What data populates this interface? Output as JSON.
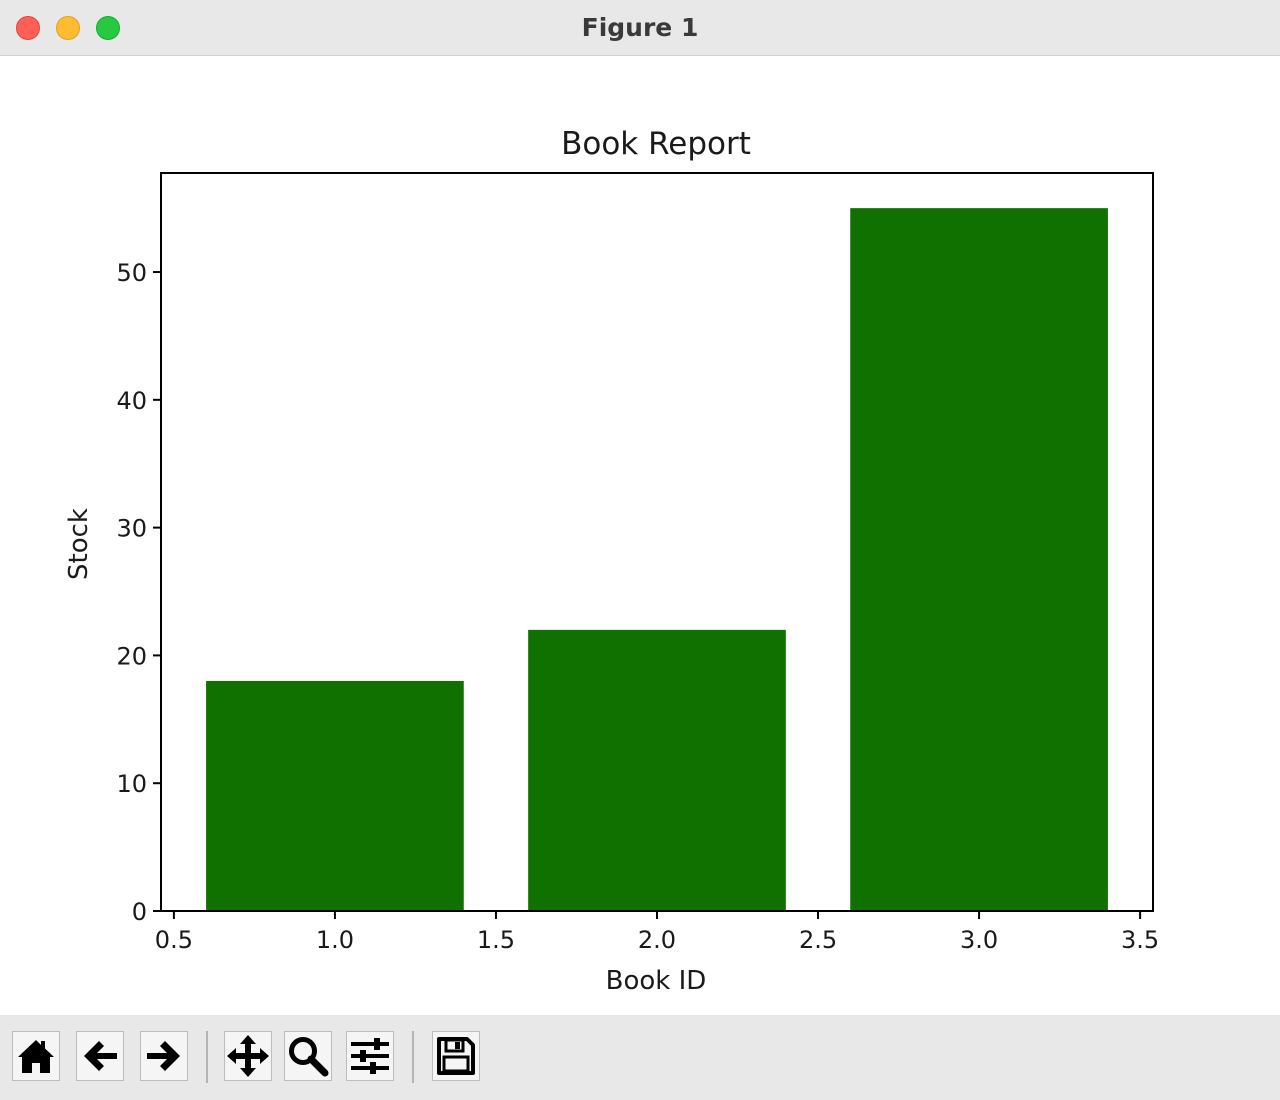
{
  "window": {
    "title": "Figure 1"
  },
  "toolbar": {
    "buttons": [
      {
        "icon": "home-icon",
        "action": "home"
      },
      {
        "icon": "back-arrow-icon",
        "action": "back"
      },
      {
        "icon": "forward-arrow-icon",
        "action": "forward"
      },
      {
        "icon": "pan-icon",
        "action": "pan"
      },
      {
        "icon": "zoom-icon",
        "action": "zoom"
      },
      {
        "icon": "configure-subplots-icon",
        "action": "configure"
      },
      {
        "icon": "save-icon",
        "action": "save"
      }
    ]
  },
  "chart_data": {
    "type": "bar",
    "title": "Book Report",
    "xlabel": "Book ID",
    "ylabel": "Stock",
    "x": [
      1,
      2,
      3
    ],
    "values": [
      18,
      22,
      55
    ],
    "bar_width": 0.8,
    "color": "#107000",
    "xlim": [
      0.46,
      3.54
    ],
    "ylim": [
      0,
      57.75
    ],
    "xticks": [
      "0.5",
      "1.0",
      "1.5",
      "2.0",
      "2.5",
      "3.0",
      "3.5"
    ],
    "xtick_values": [
      0.5,
      1.0,
      1.5,
      2.0,
      2.5,
      3.0,
      3.5
    ],
    "yticks": [
      "0",
      "10",
      "20",
      "30",
      "40",
      "50"
    ],
    "ytick_values": [
      0,
      10,
      20,
      30,
      40,
      50
    ],
    "grid": false,
    "legend": "none"
  }
}
